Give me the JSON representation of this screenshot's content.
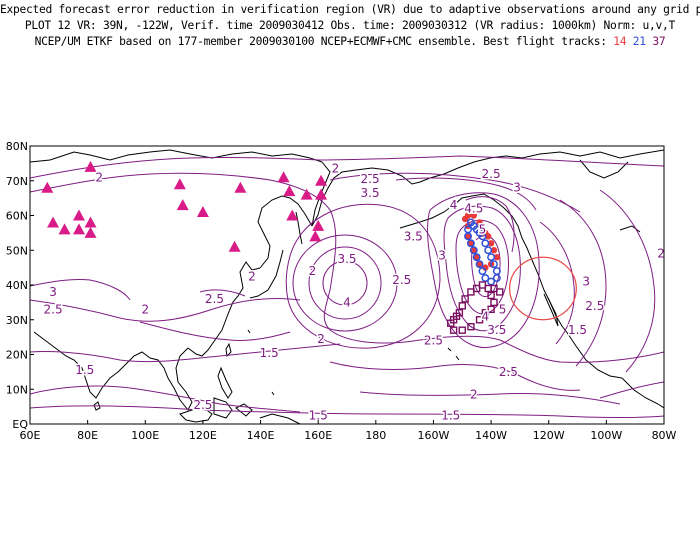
{
  "header": {
    "line1": "Expected forecast error reduction in verification region (VR) due to adaptive observations around any grid point.",
    "line2": "PLOT 12 VR: 39N, -122W, Verif. time 2009030412 Obs. time: 2009030312 (VR radius: 1000km) Norm: u,v,T",
    "line3_prefix": "NCEP/UM ETKF based on 177-member 2009030100 NCEP+ECMWF+CMC ensemble. Best flight tracks: ",
    "tracks": [
      "14",
      "21",
      "37"
    ]
  },
  "colors": {
    "contour": "#7f1c84",
    "track_14": "#e83a3a",
    "track_21": "#2f4fd8",
    "track_37": "#7a1060",
    "triangle": "#d81b87",
    "vr_circle": "#e84848"
  },
  "axes": {
    "lat_labels": [
      "80N",
      "70N",
      "60N",
      "50N",
      "40N",
      "30N",
      "20N",
      "10N",
      "EQ"
    ],
    "lon_labels": [
      "60E",
      "80E",
      "100E",
      "120E",
      "140E",
      "160E",
      "180",
      "160W",
      "140W",
      "120W",
      "100W",
      "80W"
    ]
  },
  "contour_labels": [
    {
      "t": "2",
      "lon": 166,
      "lat": 73.5
    },
    {
      "t": "2",
      "lon": 84,
      "lat": 71
    },
    {
      "t": "2.5",
      "lon": 178,
      "lat": 70.5
    },
    {
      "t": "3.5",
      "lon": 178,
      "lat": 66.5
    },
    {
      "t": "2.5",
      "lon": 220,
      "lat": 72
    },
    {
      "t": "3",
      "lon": 229,
      "lat": 68
    },
    {
      "t": "4",
      "lon": 207,
      "lat": 63
    },
    {
      "t": "4.5",
      "lon": 214,
      "lat": 62
    },
    {
      "t": "5",
      "lon": 217,
      "lat": 56
    },
    {
      "t": "3.5",
      "lon": 193,
      "lat": 54
    },
    {
      "t": "3",
      "lon": 203,
      "lat": 48.5
    },
    {
      "t": "3.5",
      "lon": 170,
      "lat": 47.5
    },
    {
      "t": "2.5",
      "lon": 189,
      "lat": 41.5
    },
    {
      "t": "4",
      "lon": 170,
      "lat": 35
    },
    {
      "t": "2",
      "lon": 158,
      "lat": 44
    },
    {
      "t": "2",
      "lon": 137,
      "lat": 42.5
    },
    {
      "t": "2.5",
      "lon": 124,
      "lat": 36
    },
    {
      "t": "2",
      "lon": 100,
      "lat": 33
    },
    {
      "t": "3",
      "lon": 68,
      "lat": 38
    },
    {
      "t": "2.5",
      "lon": 68,
      "lat": 33
    },
    {
      "t": "2",
      "lon": 161,
      "lat": 24.5
    },
    {
      "t": "1.5",
      "lon": 143,
      "lat": 20.5
    },
    {
      "t": "1.5",
      "lon": 79,
      "lat": 15.5
    },
    {
      "t": "2.5",
      "lon": 120,
      "lat": 5.5
    },
    {
      "t": "1.5",
      "lon": 160,
      "lat": 2.5
    },
    {
      "t": "1.5",
      "lon": 206,
      "lat": 2.5
    },
    {
      "t": "2",
      "lon": 214,
      "lat": 8.5
    },
    {
      "t": "2.5",
      "lon": 200,
      "lat": 24
    },
    {
      "t": "2.5",
      "lon": 226,
      "lat": 15
    },
    {
      "t": "3.5",
      "lon": 222,
      "lat": 27
    },
    {
      "t": "4",
      "lon": 218,
      "lat": 31
    },
    {
      "t": "5",
      "lon": 224,
      "lat": 33
    },
    {
      "t": "3",
      "lon": 253,
      "lat": 41
    },
    {
      "t": "2.5",
      "lon": 256,
      "lat": 34
    },
    {
      "t": "2",
      "lon": 279,
      "lat": 49
    },
    {
      "t": "1.5",
      "lon": 250,
      "lat": 27
    }
  ],
  "triangles": [
    {
      "lon": 66,
      "lat": 68
    },
    {
      "lon": 81,
      "lat": 74
    },
    {
      "lon": 68,
      "lat": 58
    },
    {
      "lon": 72,
      "lat": 56
    },
    {
      "lon": 77,
      "lat": 60
    },
    {
      "lon": 77,
      "lat": 56
    },
    {
      "lon": 81,
      "lat": 58
    },
    {
      "lon": 81,
      "lat": 55
    },
    {
      "lon": 112,
      "lat": 69
    },
    {
      "lon": 113,
      "lat": 63
    },
    {
      "lon": 120,
      "lat": 61
    },
    {
      "lon": 133,
      "lat": 68
    },
    {
      "lon": 131,
      "lat": 51
    },
    {
      "lon": 148,
      "lat": 71
    },
    {
      "lon": 150,
      "lat": 67
    },
    {
      "lon": 151,
      "lat": 60
    },
    {
      "lon": 156,
      "lat": 66
    },
    {
      "lon": 161,
      "lat": 70
    },
    {
      "lon": 161,
      "lat": 66
    },
    {
      "lon": 160,
      "lat": 57
    },
    {
      "lon": 159,
      "lat": 54
    }
  ],
  "tracks": [
    {
      "id": "14",
      "marker": "circle",
      "points": [
        [
          -148,
          60
        ],
        [
          -146,
          60
        ],
        [
          -144,
          58
        ],
        [
          -143,
          56
        ],
        [
          -142,
          55
        ],
        [
          -141,
          54
        ],
        [
          -140,
          52
        ],
        [
          -139,
          50
        ],
        [
          -138,
          48
        ],
        [
          -140,
          46
        ],
        [
          -142,
          45
        ],
        [
          -144,
          46
        ],
        [
          -145,
          48
        ],
        [
          -146,
          50
        ],
        [
          -147,
          52
        ],
        [
          -148,
          54
        ],
        [
          -148,
          57
        ],
        [
          -149,
          59
        ]
      ]
    },
    {
      "id": "21",
      "marker": "circle-open",
      "points": [
        [
          -147,
          58
        ],
        [
          -146,
          57
        ],
        [
          -145,
          56
        ],
        [
          -144,
          55
        ],
        [
          -143,
          54
        ],
        [
          -142,
          52
        ],
        [
          -141,
          50
        ],
        [
          -140,
          48
        ],
        [
          -139,
          46
        ],
        [
          -138,
          44
        ],
        [
          -138,
          42
        ],
        [
          -140,
          41
        ],
        [
          -142,
          42
        ],
        [
          -143,
          44
        ],
        [
          -144,
          46
        ],
        [
          -145,
          48
        ],
        [
          -146,
          50
        ],
        [
          -147,
          52
        ],
        [
          -148,
          54
        ],
        [
          -148,
          56
        ]
      ]
    },
    {
      "id": "37",
      "marker": "square-open",
      "points": [
        [
          -143,
          40
        ],
        [
          -145,
          39
        ],
        [
          -147,
          38
        ],
        [
          -149,
          36
        ],
        [
          -150,
          34
        ],
        [
          -151,
          32
        ],
        [
          -152,
          31
        ],
        [
          -153,
          30
        ],
        [
          -154,
          29
        ],
        [
          -153,
          27
        ],
        [
          -150,
          27
        ],
        [
          -147,
          28
        ],
        [
          -144,
          30
        ],
        [
          -142,
          32
        ],
        [
          -140,
          33
        ],
        [
          -139,
          35
        ],
        [
          -140,
          37
        ],
        [
          -141,
          39
        ],
        [
          -139,
          39
        ],
        [
          -137,
          38
        ]
      ]
    }
  ],
  "vr_circle": {
    "lon": -122,
    "lat": 39,
    "radius_km": 1000
  }
}
